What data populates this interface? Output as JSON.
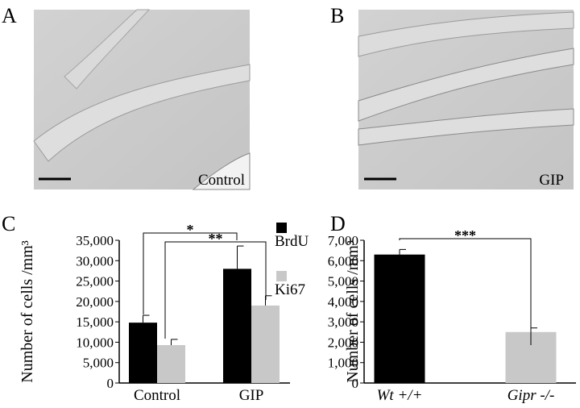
{
  "panels": [
    {
      "label": "A",
      "caption": "Control"
    },
    {
      "label": "B",
      "caption": "GIP"
    }
  ],
  "chart_data": [
    {
      "type": "bar",
      "panel": "C",
      "ylabel": "Number of cells /mm³",
      "categories": [
        "Control",
        "GIP"
      ],
      "series": [
        {
          "name": "BrdU",
          "color": "#000000",
          "values": [
            14800,
            28000
          ],
          "errors": [
            1800,
            5600
          ]
        },
        {
          "name": "Ki67",
          "color": "#c8c8c8",
          "values": [
            9300,
            19000
          ],
          "errors": [
            1400,
            2400
          ]
        }
      ],
      "ylim": [
        0,
        35000
      ],
      "yticks": [
        0,
        {
          "value": 5000,
          "label": "5,000"
        },
        {
          "value": 10000,
          "label": "10,000"
        },
        {
          "value": 15000,
          "label": "15,000"
        },
        {
          "value": 20000,
          "label": "20,000"
        },
        {
          "value": 25000,
          "label": "25,000"
        },
        {
          "value": 30000,
          "label": "30,000"
        },
        {
          "value": 35000,
          "label": "35,000"
        }
      ],
      "significance": [
        "*",
        "**"
      ]
    },
    {
      "type": "bar",
      "panel": "D",
      "ylabel": "Number of cells /mm³",
      "categories": [
        "Wt +/+",
        "Gipr -/-"
      ],
      "colors": [
        "#000000",
        "#c8c8c8"
      ],
      "values": [
        6300,
        2500
      ],
      "errors": [
        250,
        200
      ],
      "ylim": [
        0,
        7000
      ],
      "yticks": [
        0,
        {
          "value": 1000,
          "label": "1,000"
        },
        {
          "value": 2000,
          "label": "2,000"
        },
        {
          "value": 3000,
          "label": "3,000"
        },
        {
          "value": 4000,
          "label": "4,000"
        },
        {
          "value": 5000,
          "label": "5,000"
        },
        {
          "value": 6000,
          "label": "6,000"
        },
        {
          "value": 7000,
          "label": "7,000"
        }
      ],
      "significance": [
        "***"
      ]
    }
  ]
}
